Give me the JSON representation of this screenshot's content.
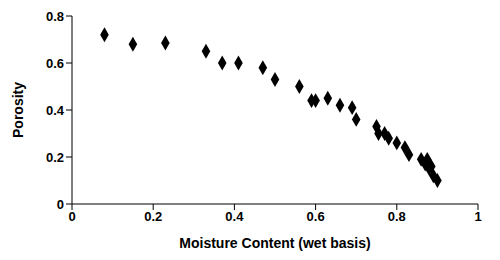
{
  "chart_data": {
    "type": "scatter",
    "x_label": "Moisture Content (wet basis)",
    "y_label": "Porosity",
    "x": [
      0.08,
      0.15,
      0.23,
      0.33,
      0.37,
      0.41,
      0.47,
      0.5,
      0.56,
      0.59,
      0.6,
      0.63,
      0.66,
      0.69,
      0.7,
      0.75,
      0.755,
      0.77,
      0.78,
      0.8,
      0.82,
      0.83,
      0.86,
      0.87,
      0.875,
      0.88,
      0.885,
      0.89,
      0.9
    ],
    "values": [
      0.72,
      0.68,
      0.685,
      0.65,
      0.6,
      0.6,
      0.58,
      0.53,
      0.5,
      0.44,
      0.44,
      0.45,
      0.42,
      0.41,
      0.36,
      0.33,
      0.3,
      0.3,
      0.28,
      0.26,
      0.24,
      0.21,
      0.19,
      0.17,
      0.19,
      0.15,
      0.16,
      0.12,
      0.1
    ],
    "color": "#000000",
    "marker": "diamond",
    "xlim": [
      0,
      1
    ],
    "xticks": [
      0,
      0.2,
      0.4,
      0.6,
      0.8,
      1
    ],
    "ylim": [
      0,
      0.8
    ],
    "yticks": [
      0,
      0.2,
      0.4,
      0.6,
      0.8
    ],
    "grid": false
  }
}
